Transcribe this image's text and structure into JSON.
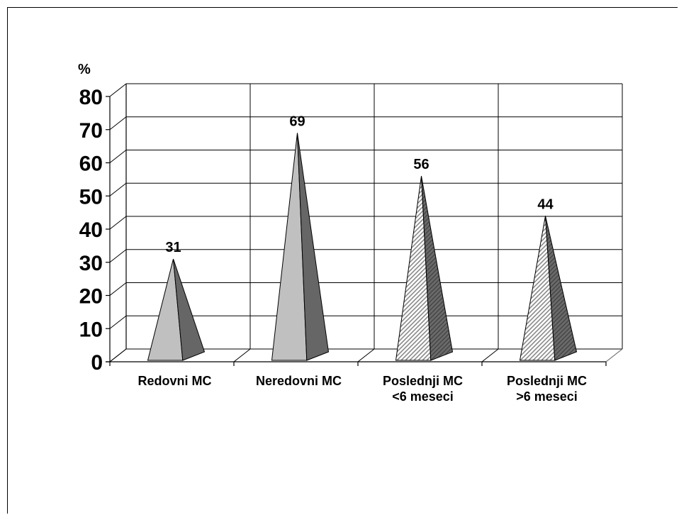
{
  "chart_data": {
    "type": "bar",
    "style": "3d-pyramid",
    "ylabel": "%",
    "ylim": [
      0,
      80
    ],
    "yticks": [
      "0",
      "10",
      "20",
      "30",
      "40",
      "50",
      "60",
      "70",
      "80"
    ],
    "categories": [
      [
        "Redovni MC"
      ],
      [
        "Neredovni MC"
      ],
      [
        "Poslednji MC",
        "<6 meseci"
      ],
      [
        "Poslednji MC",
        ">6 meseci"
      ]
    ],
    "values": [
      31,
      69,
      56,
      44
    ],
    "data_labels": [
      "31",
      "69",
      "56",
      "44"
    ],
    "fills": [
      "solid",
      "solid",
      "hatched",
      "hatched"
    ],
    "colors": {
      "light": "#c0c0c0",
      "dark": "#666666",
      "hatch": "#9a9a9a",
      "grid": "#000000"
    },
    "grid": true
  }
}
